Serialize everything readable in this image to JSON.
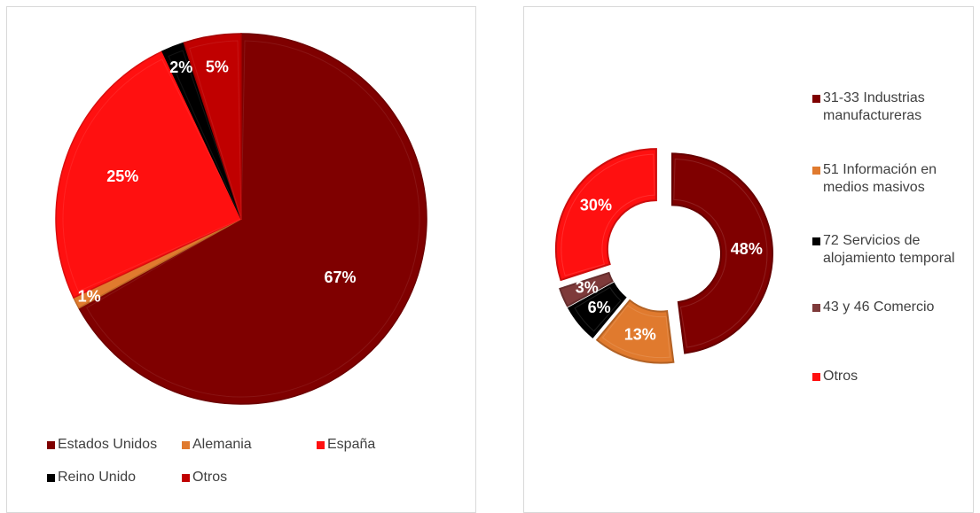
{
  "chart_data": [
    {
      "type": "pie",
      "slices": [
        {
          "label": "Estados Unidos",
          "value": 67,
          "display": "67%",
          "color": "#7F0000"
        },
        {
          "label": "Alemania",
          "value": 1,
          "display": "1%",
          "color": "#E07A2E"
        },
        {
          "label": "España",
          "value": 25,
          "display": "25%",
          "color": "#FF1010"
        },
        {
          "label": "Reino Unido",
          "value": 2,
          "display": "2%",
          "color": "#000000"
        },
        {
          "label": "Otros",
          "value": 5,
          "display": "5%",
          "color": "#C00000"
        }
      ],
      "legend_position": "bottom"
    },
    {
      "type": "pie",
      "subtype": "donut",
      "slices": [
        {
          "label": "31-33 Industrias manufactureras",
          "value": 48,
          "display": "48%",
          "color": "#7F0000"
        },
        {
          "label": "51 Información en medios masivos",
          "value": 13,
          "display": "13%",
          "color": "#E07A2E"
        },
        {
          "label": "72 Servicios de alojamiento temporal",
          "value": 6,
          "display": "6%",
          "color": "#000000"
        },
        {
          "label": "43 y 46 Comercio",
          "value": 3,
          "display": "3%",
          "color": "#7E3A3A"
        },
        {
          "label": "Otros",
          "value": 30,
          "display": "30%",
          "color": "#FF1010"
        }
      ],
      "legend_position": "right"
    }
  ]
}
